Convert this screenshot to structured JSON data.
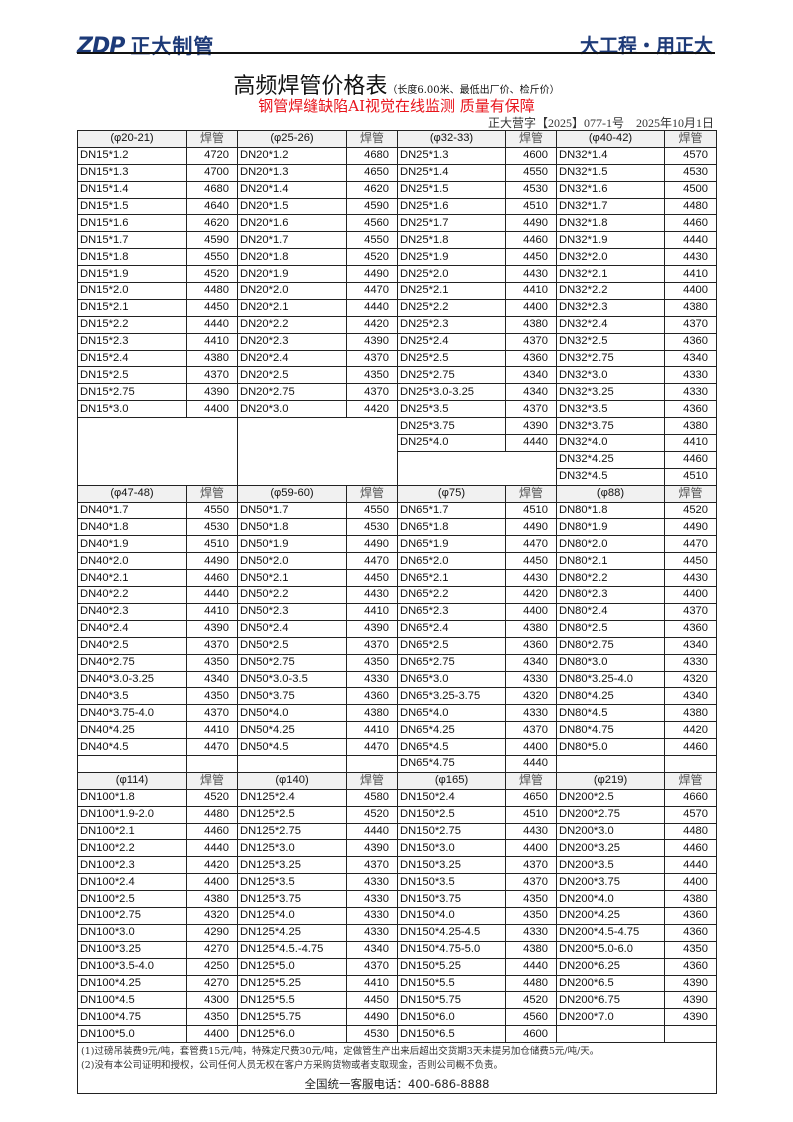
{
  "header": {
    "logo_text": "ZDP 正大制管",
    "slogan": "大工程・用正大",
    "brand_color": "#1d3a78"
  },
  "title": {
    "main": "高频焊管价格表",
    "sub": "（长度6.00米、最低出厂价、检斤价）"
  },
  "red_banner": {
    "text": "钢管焊缝缺陷AI视觉在线监测 质量有保障",
    "color": "#e8141b"
  },
  "doc_number": "正大营字【2025】077-1号　2025年10月1日",
  "sections": [
    {
      "groups": [
        {
          "header": "(φ20-21)",
          "price_header": "焊管",
          "items": [
            [
              "DN15*1.2",
              "4720"
            ],
            [
              "DN15*1.3",
              "4700"
            ],
            [
              "DN15*1.4",
              "4680"
            ],
            [
              "DN15*1.5",
              "4640"
            ],
            [
              "DN15*1.6",
              "4620"
            ],
            [
              "DN15*1.7",
              "4590"
            ],
            [
              "DN15*1.8",
              "4550"
            ],
            [
              "DN15*1.9",
              "4520"
            ],
            [
              "DN15*2.0",
              "4480"
            ],
            [
              "DN15*2.1",
              "4450"
            ],
            [
              "DN15*2.2",
              "4440"
            ],
            [
              "DN15*2.3",
              "4410"
            ],
            [
              "DN15*2.4",
              "4380"
            ],
            [
              "DN15*2.5",
              "4370"
            ],
            [
              "DN15*2.75",
              "4390"
            ],
            [
              "DN15*3.0",
              "4400"
            ]
          ]
        },
        {
          "header": "(φ25-26)",
          "price_header": "焊管",
          "items": [
            [
              "DN20*1.2",
              "4680"
            ],
            [
              "DN20*1.3",
              "4650"
            ],
            [
              "DN20*1.4",
              "4620"
            ],
            [
              "DN20*1.5",
              "4590"
            ],
            [
              "DN20*1.6",
              "4560"
            ],
            [
              "DN20*1.7",
              "4550"
            ],
            [
              "DN20*1.8",
              "4520"
            ],
            [
              "DN20*1.9",
              "4490"
            ],
            [
              "DN20*2.0",
              "4470"
            ],
            [
              "DN20*2.1",
              "4440"
            ],
            [
              "DN20*2.2",
              "4420"
            ],
            [
              "DN20*2.3",
              "4390"
            ],
            [
              "DN20*2.4",
              "4370"
            ],
            [
              "DN20*2.5",
              "4350"
            ],
            [
              "DN20*2.75",
              "4370"
            ],
            [
              "DN20*3.0",
              "4420"
            ]
          ]
        },
        {
          "header": "(φ32-33)",
          "price_header": "焊管",
          "items": [
            [
              "DN25*1.3",
              "4600"
            ],
            [
              "DN25*1.4",
              "4550"
            ],
            [
              "DN25*1.5",
              "4530"
            ],
            [
              "DN25*1.6",
              "4510"
            ],
            [
              "DN25*1.7",
              "4490"
            ],
            [
              "DN25*1.8",
              "4460"
            ],
            [
              "DN25*1.9",
              "4450"
            ],
            [
              "DN25*2.0",
              "4430"
            ],
            [
              "DN25*2.1",
              "4410"
            ],
            [
              "DN25*2.2",
              "4400"
            ],
            [
              "DN25*2.3",
              "4380"
            ],
            [
              "DN25*2.4",
              "4370"
            ],
            [
              "DN25*2.5",
              "4360"
            ],
            [
              "DN25*2.75",
              "4340"
            ],
            [
              "DN25*3.0-3.25",
              "4340"
            ],
            [
              "DN25*3.5",
              "4370"
            ],
            [
              "DN25*3.75",
              "4390"
            ],
            [
              "DN25*4.0",
              "4440"
            ]
          ]
        },
        {
          "header": "(φ40-42)",
          "price_header": "焊管",
          "items": [
            [
              "DN32*1.4",
              "4570"
            ],
            [
              "DN32*1.5",
              "4530"
            ],
            [
              "DN32*1.6",
              "4500"
            ],
            [
              "DN32*1.7",
              "4480"
            ],
            [
              "DN32*1.8",
              "4460"
            ],
            [
              "DN32*1.9",
              "4440"
            ],
            [
              "DN32*2.0",
              "4430"
            ],
            [
              "DN32*2.1",
              "4410"
            ],
            [
              "DN32*2.2",
              "4400"
            ],
            [
              "DN32*2.3",
              "4380"
            ],
            [
              "DN32*2.4",
              "4370"
            ],
            [
              "DN32*2.5",
              "4360"
            ],
            [
              "DN32*2.75",
              "4340"
            ],
            [
              "DN32*3.0",
              "4330"
            ],
            [
              "DN32*3.25",
              "4330"
            ],
            [
              "DN32*3.5",
              "4360"
            ],
            [
              "DN32*3.75",
              "4380"
            ],
            [
              "DN32*4.0",
              "4410"
            ],
            [
              "DN32*4.25",
              "4460"
            ],
            [
              "DN32*4.5",
              "4510"
            ]
          ]
        }
      ]
    },
    {
      "groups": [
        {
          "header": "(φ47-48)",
          "price_header": "焊管",
          "items": [
            [
              "DN40*1.7",
              "4550"
            ],
            [
              "DN40*1.8",
              "4530"
            ],
            [
              "DN40*1.9",
              "4510"
            ],
            [
              "DN40*2.0",
              "4490"
            ],
            [
              "DN40*2.1",
              "4460"
            ],
            [
              "DN40*2.2",
              "4440"
            ],
            [
              "DN40*2.3",
              "4410"
            ],
            [
              "DN40*2.4",
              "4390"
            ],
            [
              "DN40*2.5",
              "4370"
            ],
            [
              "DN40*2.75",
              "4350"
            ],
            [
              "DN40*3.0-3.25",
              "4340"
            ],
            [
              "DN40*3.5",
              "4350"
            ],
            [
              "DN40*3.75-4.0",
              "4370"
            ],
            [
              "DN40*4.25",
              "4410"
            ],
            [
              "DN40*4.5",
              "4470"
            ]
          ]
        },
        {
          "header": "(φ59-60)",
          "price_header": "焊管",
          "items": [
            [
              "DN50*1.7",
              "4550"
            ],
            [
              "DN50*1.8",
              "4530"
            ],
            [
              "DN50*1.9",
              "4490"
            ],
            [
              "DN50*2.0",
              "4470"
            ],
            [
              "DN50*2.1",
              "4450"
            ],
            [
              "DN50*2.2",
              "4430"
            ],
            [
              "DN50*2.3",
              "4410"
            ],
            [
              "DN50*2.4",
              "4390"
            ],
            [
              "DN50*2.5",
              "4370"
            ],
            [
              "DN50*2.75",
              "4350"
            ],
            [
              "DN50*3.0-3.5",
              "4330"
            ],
            [
              "DN50*3.75",
              "4360"
            ],
            [
              "DN50*4.0",
              "4380"
            ],
            [
              "DN50*4.25",
              "4410"
            ],
            [
              "DN50*4.5",
              "4470"
            ]
          ]
        },
        {
          "header": "(φ75)",
          "price_header": "焊管",
          "items": [
            [
              "DN65*1.7",
              "4510"
            ],
            [
              "DN65*1.8",
              "4490"
            ],
            [
              "DN65*1.9",
              "4470"
            ],
            [
              "DN65*2.0",
              "4450"
            ],
            [
              "DN65*2.1",
              "4430"
            ],
            [
              "DN65*2.2",
              "4420"
            ],
            [
              "DN65*2.3",
              "4400"
            ],
            [
              "DN65*2.4",
              "4380"
            ],
            [
              "DN65*2.5",
              "4360"
            ],
            [
              "DN65*2.75",
              "4340"
            ],
            [
              "DN65*3.0",
              "4330"
            ],
            [
              "DN65*3.25-3.75",
              "4320"
            ],
            [
              "DN65*4.0",
              "4330"
            ],
            [
              "DN65*4.25",
              "4370"
            ],
            [
              "DN65*4.5",
              "4400"
            ],
            [
              "DN65*4.75",
              "4440"
            ]
          ]
        },
        {
          "header": "(φ88)",
          "price_header": "焊管",
          "items": [
            [
              "DN80*1.8",
              "4520"
            ],
            [
              "DN80*1.9",
              "4490"
            ],
            [
              "DN80*2.0",
              "4470"
            ],
            [
              "DN80*2.1",
              "4450"
            ],
            [
              "DN80*2.2",
              "4430"
            ],
            [
              "DN80*2.3",
              "4400"
            ],
            [
              "DN80*2.4",
              "4370"
            ],
            [
              "DN80*2.5",
              "4360"
            ],
            [
              "DN80*2.75",
              "4340"
            ],
            [
              "DN80*3.0",
              "4330"
            ],
            [
              "DN80*3.25-4.0",
              "4320"
            ],
            [
              "DN80*4.25",
              "4340"
            ],
            [
              "DN80*4.5",
              "4380"
            ],
            [
              "DN80*4.75",
              "4420"
            ],
            [
              "DN80*5.0",
              "4460"
            ]
          ]
        }
      ]
    },
    {
      "groups": [
        {
          "header": "(φ114)",
          "price_header": "焊管",
          "items": [
            [
              "DN100*1.8",
              "4520"
            ],
            [
              "DN100*1.9-2.0",
              "4480"
            ],
            [
              "DN100*2.1",
              "4460"
            ],
            [
              "DN100*2.2",
              "4440"
            ],
            [
              "DN100*2.3",
              "4420"
            ],
            [
              "DN100*2.4",
              "4400"
            ],
            [
              "DN100*2.5",
              "4380"
            ],
            [
              "DN100*2.75",
              "4320"
            ],
            [
              "DN100*3.0",
              "4290"
            ],
            [
              "DN100*3.25",
              "4270"
            ],
            [
              "DN100*3.5-4.0",
              "4250"
            ],
            [
              "DN100*4.25",
              "4270"
            ],
            [
              "DN100*4.5",
              "4300"
            ],
            [
              "DN100*4.75",
              "4350"
            ],
            [
              "DN100*5.0",
              "4400"
            ]
          ]
        },
        {
          "header": "(φ140)",
          "price_header": "焊管",
          "items": [
            [
              "DN125*2.4",
              "4580"
            ],
            [
              "DN125*2.5",
              "4520"
            ],
            [
              "DN125*2.75",
              "4440"
            ],
            [
              "DN125*3.0",
              "4390"
            ],
            [
              "DN125*3.25",
              "4370"
            ],
            [
              "DN125*3.5",
              "4330"
            ],
            [
              "DN125*3.75",
              "4330"
            ],
            [
              "DN125*4.0",
              "4330"
            ],
            [
              "DN125*4.25",
              "4330"
            ],
            [
              "DN125*4.5.-4.75",
              "4340"
            ],
            [
              "DN125*5.0",
              "4370"
            ],
            [
              "DN125*5.25",
              "4410"
            ],
            [
              "DN125*5.5",
              "4450"
            ],
            [
              "DN125*5.75",
              "4490"
            ],
            [
              "DN125*6.0",
              "4530"
            ]
          ]
        },
        {
          "header": "(φ165)",
          "price_header": "焊管",
          "items": [
            [
              "DN150*2.4",
              "4650"
            ],
            [
              "DN150*2.5",
              "4510"
            ],
            [
              "DN150*2.75",
              "4430"
            ],
            [
              "DN150*3.0",
              "4400"
            ],
            [
              "DN150*3.25",
              "4370"
            ],
            [
              "DN150*3.5",
              "4370"
            ],
            [
              "DN150*3.75",
              "4350"
            ],
            [
              "DN150*4.0",
              "4350"
            ],
            [
              "DN150*4.25-4.5",
              "4330"
            ],
            [
              "DN150*4.75-5.0",
              "4380"
            ],
            [
              "DN150*5.25",
              "4440"
            ],
            [
              "DN150*5.5",
              "4480"
            ],
            [
              "DN150*5.75",
              "4520"
            ],
            [
              "DN150*6.0",
              "4560"
            ],
            [
              "DN150*6.5",
              "4600"
            ]
          ]
        },
        {
          "header": "(φ219)",
          "price_header": "焊管",
          "items": [
            [
              "DN200*2.5",
              "4660"
            ],
            [
              "DN200*2.75",
              "4570"
            ],
            [
              "DN200*3.0",
              "4480"
            ],
            [
              "DN200*3.25",
              "4460"
            ],
            [
              "DN200*3.5",
              "4440"
            ],
            [
              "DN200*3.75",
              "4400"
            ],
            [
              "DN200*4.0",
              "4380"
            ],
            [
              "DN200*4.25",
              "4360"
            ],
            [
              "DN200*4.5-4.75",
              "4360"
            ],
            [
              "DN200*5.0-6.0",
              "4350"
            ],
            [
              "DN200*6.25",
              "4360"
            ],
            [
              "DN200*6.5",
              "4390"
            ],
            [
              "DN200*6.75",
              "4390"
            ],
            [
              "DN200*7.0",
              "4390"
            ]
          ]
        }
      ]
    }
  ],
  "notes": [
    "(1)过磅吊装费9元/吨，套管费15元/吨，特殊定尺费30元/吨，定做管生产出来后超出交货期3天未提另加仓储费5元/吨/天。",
    "(2)没有本公司证明和授权，公司任何人员无权在客户方采购货物或者支取现金，否则公司概不负责。"
  ],
  "hotline": "全国统一客服电话：400-686-8888"
}
